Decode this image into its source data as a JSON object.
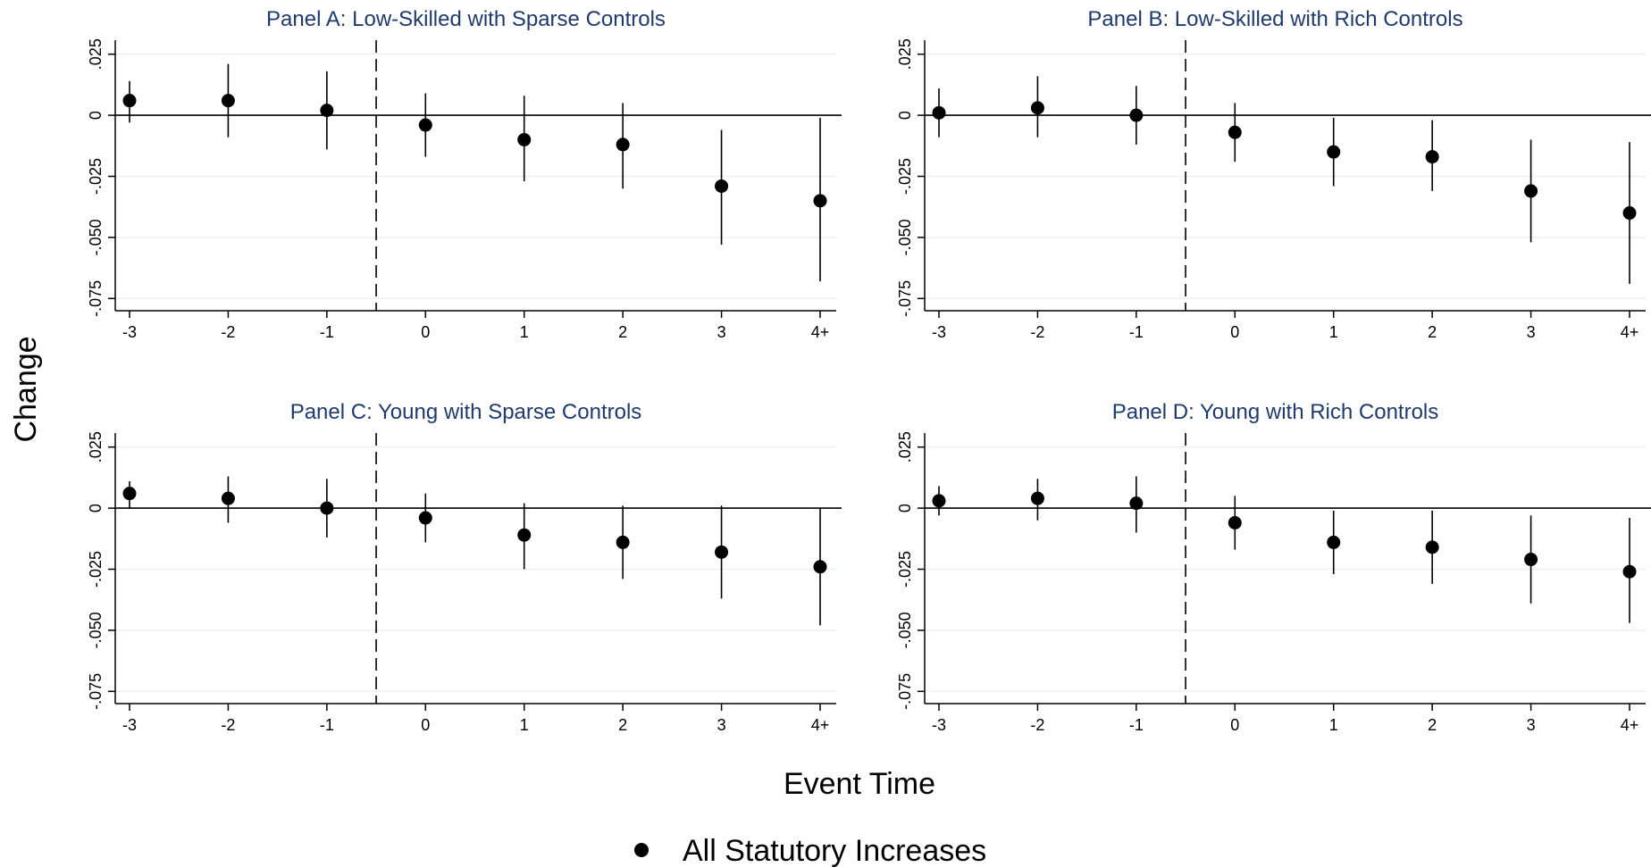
{
  "chart_data": {
    "type": "scatter",
    "xlabel": "Event Time",
    "ylabel": "Change",
    "x_categories": [
      "-3",
      "-2",
      "-1",
      "0",
      "1",
      "2",
      "3",
      "4+"
    ],
    "y_ticks": [
      0.025,
      0,
      -0.025,
      -0.05,
      -0.075
    ],
    "y_tick_labels": [
      ".025",
      "0",
      "-.025",
      "-.050",
      "-.075"
    ],
    "ylim": [
      -0.08,
      0.03
    ],
    "grid": true,
    "reference_line_y": 0,
    "event_line_x": -0.5,
    "legend": {
      "position": "bottom",
      "entries": [
        "All Statutory Increases"
      ]
    },
    "panels": [
      {
        "title": "Panel A: Low-Skilled with Sparse Controls",
        "points": [
          {
            "x": "-3",
            "y": 0.006,
            "lo": -0.003,
            "hi": 0.014
          },
          {
            "x": "-2",
            "y": 0.006,
            "lo": -0.009,
            "hi": 0.021
          },
          {
            "x": "-1",
            "y": 0.002,
            "lo": -0.014,
            "hi": 0.018
          },
          {
            "x": "0",
            "y": -0.004,
            "lo": -0.017,
            "hi": 0.009
          },
          {
            "x": "1",
            "y": -0.01,
            "lo": -0.027,
            "hi": 0.008
          },
          {
            "x": "2",
            "y": -0.012,
            "lo": -0.03,
            "hi": 0.005
          },
          {
            "x": "3",
            "y": -0.029,
            "lo": -0.053,
            "hi": -0.006
          },
          {
            "x": "4+",
            "y": -0.035,
            "lo": -0.068,
            "hi": -0.001
          }
        ]
      },
      {
        "title": "Panel B: Low-Skilled with Rich Controls",
        "points": [
          {
            "x": "-3",
            "y": 0.001,
            "lo": -0.009,
            "hi": 0.011
          },
          {
            "x": "-2",
            "y": 0.003,
            "lo": -0.009,
            "hi": 0.016
          },
          {
            "x": "-1",
            "y": 0.0,
            "lo": -0.012,
            "hi": 0.012
          },
          {
            "x": "0",
            "y": -0.007,
            "lo": -0.019,
            "hi": 0.005
          },
          {
            "x": "1",
            "y": -0.015,
            "lo": -0.029,
            "hi": -0.001
          },
          {
            "x": "2",
            "y": -0.017,
            "lo": -0.031,
            "hi": -0.002
          },
          {
            "x": "3",
            "y": -0.031,
            "lo": -0.052,
            "hi": -0.01
          },
          {
            "x": "4+",
            "y": -0.04,
            "lo": -0.069,
            "hi": -0.011
          }
        ]
      },
      {
        "title": "Panel C: Young with Sparse Controls",
        "points": [
          {
            "x": "-3",
            "y": 0.006,
            "lo": 0.0,
            "hi": 0.011
          },
          {
            "x": "-2",
            "y": 0.004,
            "lo": -0.006,
            "hi": 0.013
          },
          {
            "x": "-1",
            "y": 0.0,
            "lo": -0.012,
            "hi": 0.012
          },
          {
            "x": "0",
            "y": -0.004,
            "lo": -0.014,
            "hi": 0.006
          },
          {
            "x": "1",
            "y": -0.011,
            "lo": -0.025,
            "hi": 0.002
          },
          {
            "x": "2",
            "y": -0.014,
            "lo": -0.029,
            "hi": 0.001
          },
          {
            "x": "3",
            "y": -0.018,
            "lo": -0.037,
            "hi": 0.001
          },
          {
            "x": "4+",
            "y": -0.024,
            "lo": -0.048,
            "hi": 0.0
          }
        ]
      },
      {
        "title": "Panel D: Young with Rich Controls",
        "points": [
          {
            "x": "-3",
            "y": 0.003,
            "lo": -0.003,
            "hi": 0.009
          },
          {
            "x": "-2",
            "y": 0.004,
            "lo": -0.005,
            "hi": 0.012
          },
          {
            "x": "-1",
            "y": 0.002,
            "lo": -0.01,
            "hi": 0.013
          },
          {
            "x": "0",
            "y": -0.006,
            "lo": -0.017,
            "hi": 0.005
          },
          {
            "x": "1",
            "y": -0.014,
            "lo": -0.027,
            "hi": -0.001
          },
          {
            "x": "2",
            "y": -0.016,
            "lo": -0.031,
            "hi": -0.001
          },
          {
            "x": "3",
            "y": -0.021,
            "lo": -0.039,
            "hi": -0.003
          },
          {
            "x": "4+",
            "y": -0.026,
            "lo": -0.047,
            "hi": -0.004
          }
        ]
      }
    ]
  },
  "colors": {
    "marker": "#000000",
    "title": "#1f3b6e",
    "grid": "#e6eef2",
    "axis": "#000000"
  }
}
